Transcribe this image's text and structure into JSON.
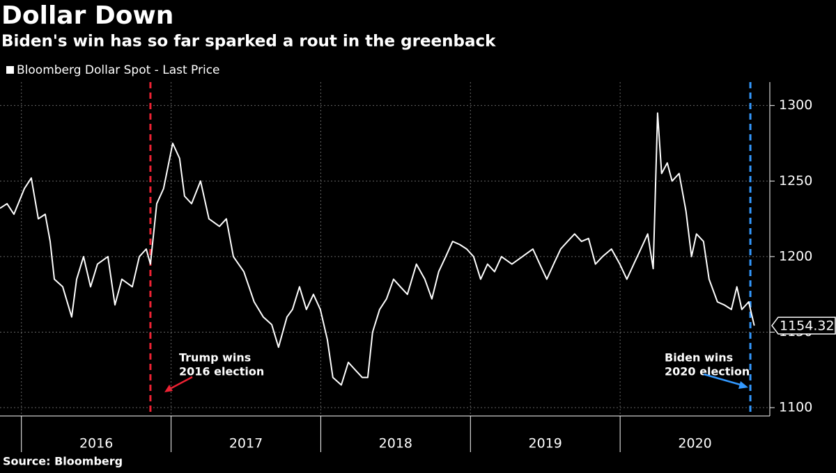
{
  "chart_data": {
    "type": "line",
    "title": "Dollar Down",
    "subtitle": "Biden's win has so far sparked a rout in the greenback",
    "source": "Source: Bloomberg",
    "series": [
      {
        "name": "Bloomberg Dollar Spot - Last Price",
        "color": "#ffffff",
        "x": [
          2015.857,
          2015.904,
          2015.95,
          2016.02,
          2016.066,
          2016.113,
          2016.159,
          2016.192,
          2016.22,
          2016.276,
          2016.336,
          2016.369,
          2016.415,
          2016.462,
          2016.508,
          2016.578,
          2016.625,
          2016.671,
          2016.741,
          2016.788,
          2016.834,
          2016.862,
          2016.904,
          2016.95,
          2017.011,
          2017.057,
          2017.09,
          2017.137,
          2017.197,
          2017.253,
          2017.323,
          2017.369,
          2017.416,
          2017.486,
          2017.555,
          2017.616,
          2017.672,
          2017.718,
          2017.774,
          2017.811,
          2017.858,
          2017.904,
          2017.951,
          2017.997,
          2018.044,
          2018.081,
          2018.137,
          2018.184,
          2018.23,
          2018.277,
          2018.314,
          2018.346,
          2018.393,
          2018.439,
          2018.486,
          2018.532,
          2018.579,
          2018.639,
          2018.695,
          2018.742,
          2018.788,
          2018.835,
          2018.881,
          2018.928,
          2018.975,
          2019.021,
          2019.068,
          2019.114,
          2019.161,
          2019.207,
          2019.277,
          2019.347,
          2019.417,
          2019.463,
          2019.51,
          2019.556,
          2019.603,
          2019.649,
          2019.696,
          2019.742,
          2019.789,
          2019.835,
          2019.882,
          2019.942,
          2019.998,
          2020.045,
          2020.091,
          2020.138,
          2020.184,
          2020.221,
          2020.25,
          2020.277,
          2020.315,
          2020.347,
          2020.394,
          2020.44,
          2020.477,
          2020.51,
          2020.557,
          2020.594,
          2020.65,
          2020.696,
          2020.743,
          2020.78,
          2020.813,
          2020.859,
          2020.896
        ],
        "values": [
          1232,
          1235,
          1228,
          1245,
          1252,
          1225,
          1228,
          1210,
          1185,
          1180,
          1160,
          1185,
          1200,
          1180,
          1195,
          1200,
          1168,
          1185,
          1180,
          1200,
          1205,
          1195,
          1235,
          1245,
          1275,
          1265,
          1240,
          1235,
          1250,
          1225,
          1220,
          1225,
          1200,
          1190,
          1170,
          1160,
          1155,
          1140,
          1160,
          1165,
          1180,
          1165,
          1175,
          1165,
          1145,
          1120,
          1115,
          1130,
          1125,
          1120,
          1120,
          1150,
          1165,
          1172,
          1185,
          1180,
          1175,
          1195,
          1185,
          1172,
          1190,
          1200,
          1210,
          1208,
          1205,
          1200,
          1185,
          1195,
          1190,
          1200,
          1195,
          1200,
          1205,
          1195,
          1185,
          1195,
          1205,
          1210,
          1215,
          1210,
          1212,
          1195,
          1200,
          1205,
          1195,
          1185,
          1195,
          1205,
          1215,
          1192,
          1295,
          1255,
          1262,
          1250,
          1255,
          1230,
          1200,
          1215,
          1210,
          1185,
          1170,
          1168,
          1165,
          1180,
          1165,
          1170,
          1154.32
        ]
      }
    ],
    "xlim": [
      2015.857,
      2021
    ],
    "xticks": [
      2016,
      2017,
      2018,
      2019,
      2020
    ],
    "ylim": [
      1094.5,
      1315.5
    ],
    "yticks": [
      1100,
      1150,
      1200,
      1250,
      1300
    ],
    "grid": true,
    "annotations": [
      {
        "lines": [
          "Trump wins",
          "2016 election"
        ],
        "x": 2016.862,
        "color": "#ee2233"
      },
      {
        "lines": [
          "Biden wins",
          "2020 election"
        ],
        "x": 2020.87,
        "color": "#3399ff"
      }
    ]
  }
}
